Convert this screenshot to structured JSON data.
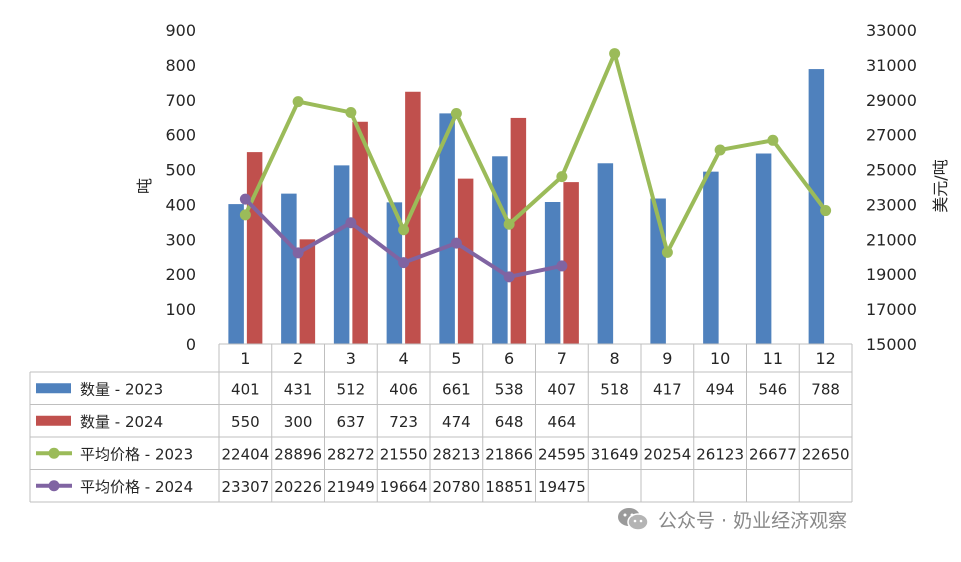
{
  "chart_data": {
    "type": "bar",
    "categories": [
      "1",
      "2",
      "3",
      "4",
      "5",
      "6",
      "7",
      "8",
      "9",
      "10",
      "11",
      "12"
    ],
    "series": [
      {
        "name": "数量 - 2023",
        "kind": "bar",
        "axis": "left",
        "color": "#4f81bd",
        "values": [
          401,
          431,
          512,
          406,
          661,
          538,
          407,
          518,
          417,
          494,
          546,
          788
        ]
      },
      {
        "name": "数量 - 2024",
        "kind": "bar",
        "axis": "left",
        "color": "#c0504d",
        "values": [
          550,
          300,
          637,
          723,
          474,
          648,
          464,
          null,
          null,
          null,
          null,
          null
        ]
      },
      {
        "name": "平均价格 - 2023",
        "kind": "line",
        "axis": "right",
        "color": "#9bbb59",
        "values": [
          22404,
          28896,
          28272,
          21550,
          28213,
          21866,
          24595,
          31649,
          20254,
          26123,
          26677,
          22650
        ]
      },
      {
        "name": "平均价格 - 2024",
        "kind": "line",
        "axis": "right",
        "color": "#8064a2",
        "values": [
          23307,
          20226,
          21949,
          19664,
          20780,
          18851,
          19475,
          null,
          null,
          null,
          null,
          null
        ]
      }
    ],
    "y_left": {
      "label": "吨",
      "min": 0,
      "max": 900,
      "ticks": [
        "0",
        "100",
        "200",
        "300",
        "400",
        "500",
        "600",
        "700",
        "800",
        "900"
      ]
    },
    "y_right": {
      "label": "美元/吨",
      "min": 15000,
      "max": 33000,
      "ticks": [
        "15000",
        "17000",
        "19000",
        "21000",
        "23000",
        "25000",
        "27000",
        "29000",
        "31000",
        "33000"
      ]
    },
    "grid": false,
    "legend": "data-table-below"
  },
  "watermark": {
    "text": "公众号 · 奶业经济观察",
    "icon": "wechat-icon"
  }
}
